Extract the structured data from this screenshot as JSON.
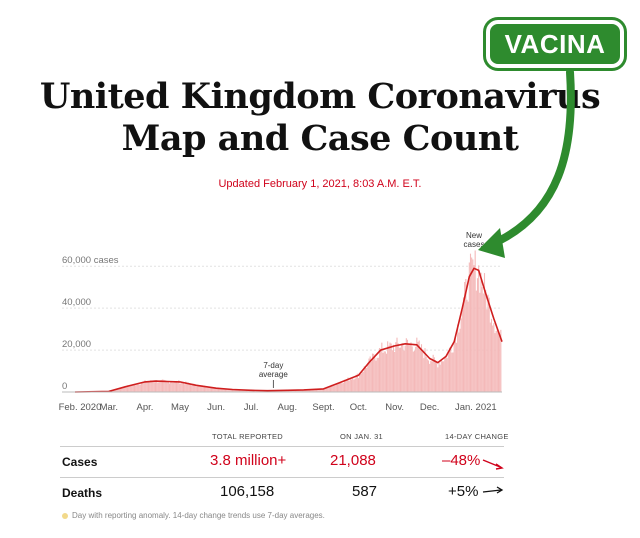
{
  "badge": {
    "label": "VACINA",
    "color": "#2e8b2e"
  },
  "headline": {
    "line1": "United Kingdom Coronavirus",
    "line2": "Map and Case Count"
  },
  "updated": "Updated February 1, 2021, 8:03 A.M. E.T.",
  "chart_data": {
    "type": "area",
    "ylabel_first": "60,000 cases",
    "y_ticks": [
      {
        "value": 60000,
        "label": "60,000 cases"
      },
      {
        "value": 40000,
        "label": "40,000"
      },
      {
        "value": 20000,
        "label": "20,000"
      },
      {
        "value": 0,
        "label": "0"
      }
    ],
    "ylim": [
      0,
      62000
    ],
    "x_ticks": [
      "Feb. 2020",
      "Mar.",
      "Apr.",
      "May",
      "Jun.",
      "Jul.",
      "Aug.",
      "Sept.",
      "Oct.",
      "Nov.",
      "Dec.",
      "Jan. 2021"
    ],
    "x_start": "2020-02-01",
    "x_end": "2021-02-01",
    "annotations": [
      {
        "label_lines": [
          "7-day",
          "average"
        ],
        "date": "2020-07-20"
      },
      {
        "label_lines": [
          "New",
          "cases"
        ],
        "date": "2021-01-08"
      }
    ],
    "series": [
      {
        "name": "7-day average",
        "dates": [
          "2020-02-01",
          "2020-03-01",
          "2020-03-15",
          "2020-04-01",
          "2020-04-10",
          "2020-04-20",
          "2020-05-01",
          "2020-05-15",
          "2020-06-01",
          "2020-06-15",
          "2020-07-01",
          "2020-07-15",
          "2020-08-01",
          "2020-08-15",
          "2020-09-01",
          "2020-09-15",
          "2020-10-01",
          "2020-10-10",
          "2020-10-20",
          "2020-11-01",
          "2020-11-10",
          "2020-11-20",
          "2020-12-01",
          "2020-12-08",
          "2020-12-15",
          "2020-12-22",
          "2020-12-29",
          "2021-01-04",
          "2021-01-08",
          "2021-01-12",
          "2021-01-18",
          "2021-01-25",
          "2021-02-01"
        ],
        "values": [
          0,
          300,
          2500,
          4800,
          5200,
          5000,
          4800,
          3200,
          1800,
          1200,
          800,
          600,
          800,
          1000,
          1500,
          4500,
          8000,
          14000,
          20000,
          22000,
          23000,
          22500,
          16000,
          14000,
          17000,
          24000,
          40000,
          55000,
          59000,
          58000,
          47000,
          35000,
          24000
        ]
      }
    ]
  },
  "table": {
    "headers": {
      "total": "TOTAL REPORTED",
      "jan31": "ON JAN. 31",
      "change": "14-DAY CHANGE"
    },
    "rows": [
      {
        "label": "Cases",
        "total": "3.8 million+",
        "jan31": "21,088",
        "change": "–48%"
      },
      {
        "label": "Deaths",
        "total": "106,158",
        "jan31": "587",
        "change": "+5%"
      }
    ]
  },
  "footnote": "Day with reporting anomaly. 14-day change trends use 7-day averages."
}
